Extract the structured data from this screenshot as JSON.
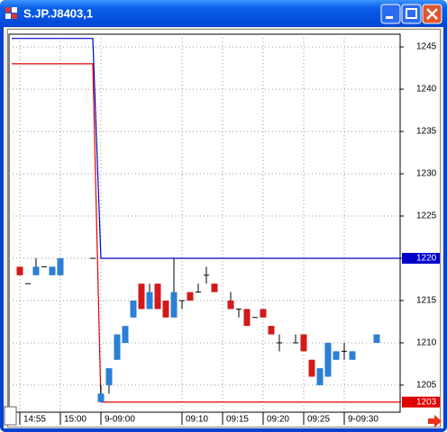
{
  "window": {
    "title": "S.JP.J8403,1"
  },
  "chart_data": {
    "type": "candlestick",
    "xlim": [
      -1.33,
      46.89
    ],
    "ylim": [
      1201.8,
      1246.5
    ],
    "yticks": [
      1205,
      1210,
      1215,
      1220,
      1225,
      1230,
      1235,
      1240,
      1245
    ],
    "xticks": [
      {
        "value": 0,
        "label": "14:55"
      },
      {
        "value": 5,
        "label": "15:00"
      },
      {
        "value": 10,
        "label": "9-09:00"
      },
      {
        "value": 20,
        "label": "09:10"
      },
      {
        "value": 25,
        "label": "09:15"
      },
      {
        "value": 30,
        "label": "09:20"
      },
      {
        "value": 35,
        "label": "09:25"
      },
      {
        "value": 40,
        "label": "9-09:30"
      }
    ],
    "grid": true,
    "up_color": "#2b7fd4",
    "down_color": "#d21a1a",
    "candles": {
      "x": [
        0,
        1,
        2,
        3,
        4,
        5,
        9,
        10,
        11,
        12,
        13,
        14,
        15,
        16,
        17,
        18,
        19,
        20,
        21,
        22,
        23,
        24,
        26,
        27,
        28,
        29,
        30,
        31,
        32,
        34,
        35,
        36,
        37,
        38,
        39,
        40,
        41,
        44
      ],
      "open": [
        1219,
        1217,
        1218,
        1219,
        1218,
        1218,
        1220,
        1203,
        1205,
        1208,
        1210,
        1213,
        1217,
        1214,
        1217,
        1215,
        1213,
        1215,
        1216,
        1216,
        1218,
        1217,
        1215,
        1214,
        1214,
        1213,
        1214,
        1212,
        1210,
        1210,
        1211,
        1208,
        1205,
        1206,
        1208,
        1209,
        1208,
        1210
      ],
      "high": [
        1219,
        1217,
        1220,
        1219,
        1219,
        1220,
        1220,
        1205,
        1207,
        1211,
        1212,
        1215,
        1217,
        1217,
        1217,
        1215,
        1220,
        1215,
        1216,
        1217,
        1219,
        1217,
        1216,
        1214,
        1214,
        1213,
        1214,
        1212,
        1211,
        1211,
        1211,
        1208,
        1207,
        1210,
        1209,
        1210,
        1209,
        1211
      ],
      "low": [
        1218,
        1217,
        1218,
        1219,
        1218,
        1218,
        1220,
        1203,
        1204,
        1208,
        1210,
        1213,
        1214,
        1214,
        1214,
        1213,
        1213,
        1214,
        1215,
        1216,
        1217,
        1216,
        1214,
        1213,
        1212,
        1213,
        1213,
        1211,
        1209,
        1210,
        1209,
        1206,
        1205,
        1206,
        1208,
        1208,
        1208,
        1210
      ],
      "close": [
        1218,
        1217,
        1219,
        1219,
        1219,
        1220,
        1220,
        1204,
        1207,
        1211,
        1212,
        1215,
        1214,
        1216,
        1214,
        1213,
        1216,
        1215,
        1215,
        1216,
        1218,
        1216,
        1214,
        1214,
        1212,
        1213,
        1213,
        1211,
        1210,
        1210,
        1209,
        1206,
        1207,
        1210,
        1209,
        1209,
        1209,
        1211
      ]
    },
    "series": [
      {
        "color": "#0000c8",
        "x": [
          -1,
          9,
          10,
          47
        ],
        "values": [
          1246,
          1246,
          1220,
          1220
        ]
      },
      {
        "color": "#e00000",
        "x": [
          -1,
          9,
          10,
          47
        ],
        "values": [
          1243,
          1243,
          1203,
          1203
        ]
      }
    ],
    "price_tags": [
      {
        "value": 1220,
        "color": "#0000c8"
      },
      {
        "value": 1203,
        "color": "#e00000"
      }
    ]
  }
}
